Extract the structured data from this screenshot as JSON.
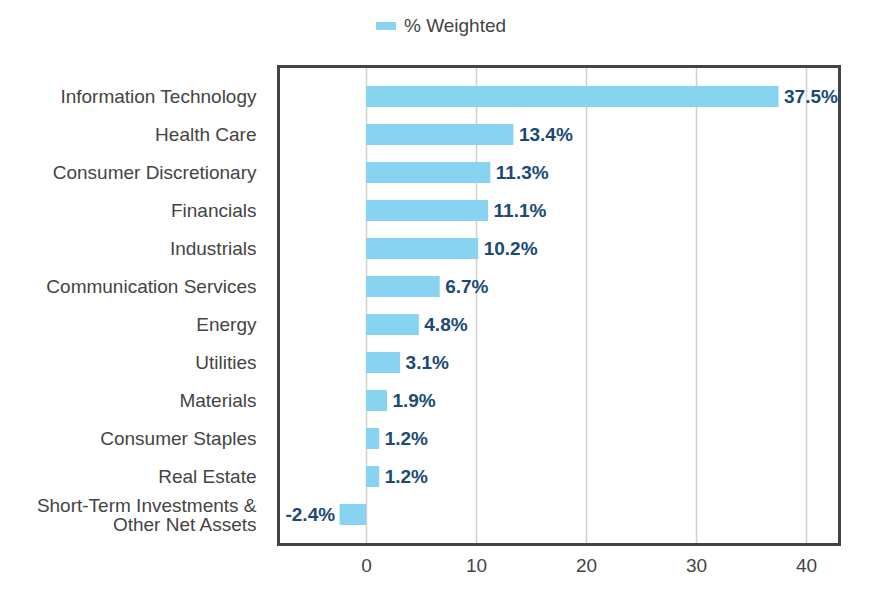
{
  "chart_data": {
    "type": "bar",
    "orientation": "horizontal",
    "categories": [
      "Information Technology",
      "Health Care",
      "Consumer Discretionary",
      "Financials",
      "Industrials",
      "Communication Services",
      "Energy",
      "Utilities",
      "Materials",
      "Consumer Staples",
      "Real Estate",
      "Short-Term Investments &\nOther Net Assets"
    ],
    "series": [
      {
        "name": "% Weighted",
        "color": "#87d3f0",
        "values": [
          37.5,
          13.4,
          11.3,
          11.1,
          10.2,
          6.7,
          4.8,
          3.1,
          1.9,
          1.2,
          1.2,
          -2.4
        ],
        "value_labels": [
          "37.5%",
          "13.4%",
          "11.3%",
          "11.1%",
          "10.2%",
          "6.7%",
          "4.8%",
          "3.1%",
          "1.9%",
          "1.2%",
          "1.2%",
          "-2.4%"
        ]
      }
    ],
    "xlim": [
      -8,
      43
    ],
    "xticks": [
      0,
      10,
      20,
      30,
      40
    ],
    "grid": true,
    "data_labels": true,
    "legend": "top"
  }
}
